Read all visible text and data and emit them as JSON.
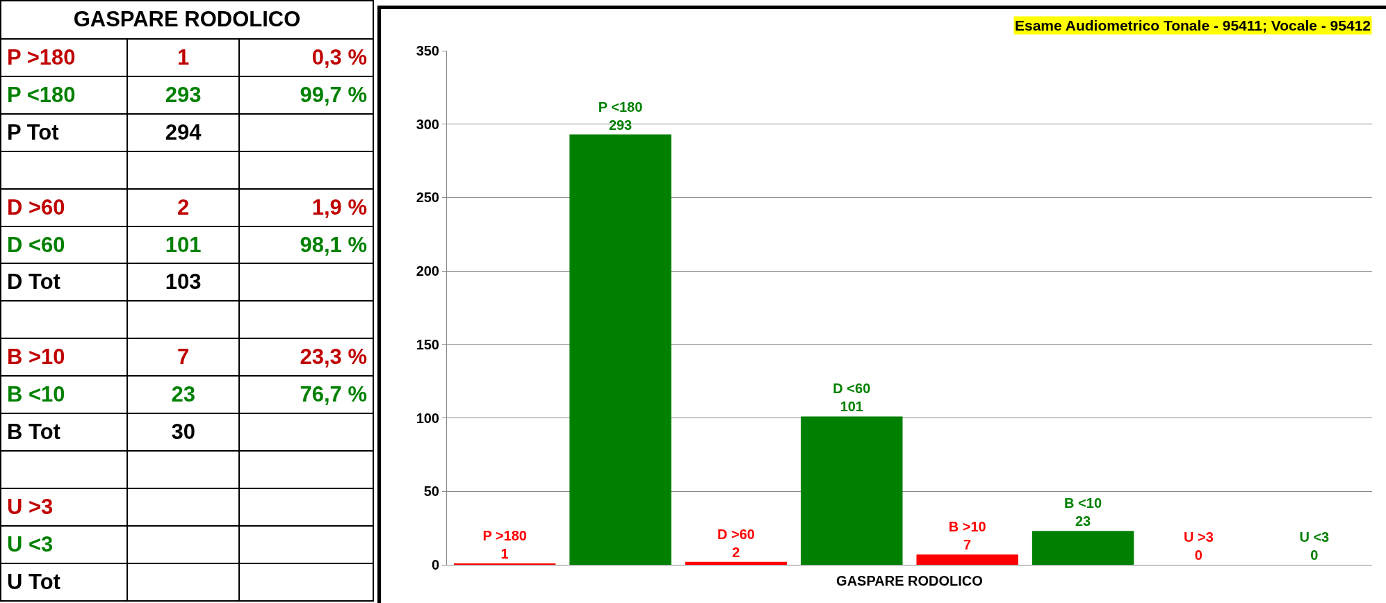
{
  "chart_data": [
    {
      "type": "other",
      "title": "GASPARE RODOLICO",
      "categories": [
        "P >180",
        "P <180",
        "P Tot",
        null,
        "D >60",
        "D <60",
        "D Tot",
        null,
        "B >10",
        "B <10",
        "B Tot",
        null,
        "U >3",
        "U <3",
        "U Tot"
      ],
      "cell_labels": [
        [
          "1",
          "0,3 %"
        ],
        [
          "293",
          "99,7 %"
        ],
        [
          "294",
          null
        ],
        [
          null,
          null
        ],
        [
          "2",
          "1,9 %"
        ],
        [
          "101",
          "98,1 %"
        ],
        [
          "103",
          null
        ],
        [
          null,
          null
        ],
        [
          "7",
          "23,3 %"
        ],
        [
          "23",
          "76,7 %"
        ],
        [
          "30",
          null
        ],
        [
          null,
          null
        ],
        [
          null,
          null
        ],
        [
          null,
          null
        ],
        [
          null,
          null
        ]
      ],
      "colors": [
        "#c00000",
        "#008000",
        "#000000",
        "#000000",
        "#c00000",
        "#008000",
        "#000000",
        "#000000",
        "#c00000",
        "#008000",
        "#000000",
        "#000000",
        "#c00000",
        "#008000",
        "#000000"
      ]
    },
    {
      "type": "bar",
      "title": "Esame Audiometrico Tonale - 95411; Vocale - 95412",
      "xlabel": "GASPARE RODOLICO",
      "categories": [
        "P >180",
        "P <180",
        "D >60",
        "D <60",
        "B >10",
        "B <10",
        "U >3",
        "U <3"
      ],
      "values": [
        1,
        293,
        2,
        101,
        7,
        23,
        0,
        0
      ],
      "colors": [
        "#ff0000",
        "#008000",
        "#ff0000",
        "#008000",
        "#ff0000",
        "#008000",
        "#ff0000",
        "#008000"
      ],
      "ylim": [
        0,
        350
      ],
      "yticks": [
        0,
        50,
        100,
        150,
        200,
        250,
        300,
        350
      ],
      "grid": "y",
      "legend": false,
      "tick_labels": "y",
      "data_labels": true
    }
  ]
}
